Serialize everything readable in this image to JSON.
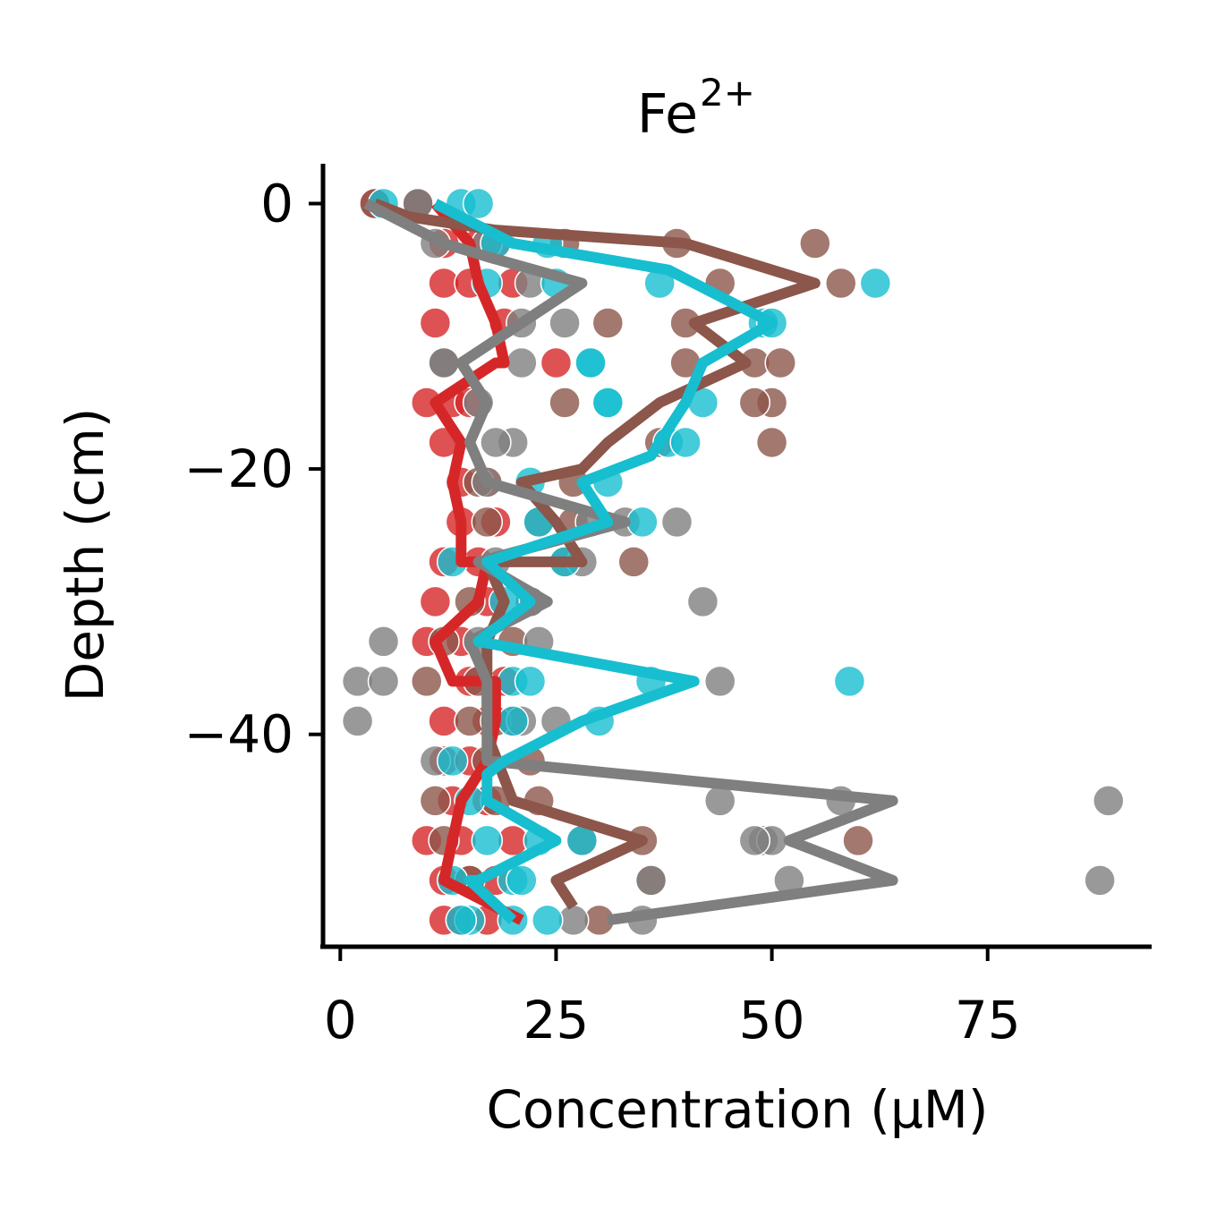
{
  "chart_data": {
    "type": "scatter",
    "title": "Fe",
    "title_superscript": "2+",
    "xlabel": "Concentration (μM)",
    "ylabel": "Depth (cm)",
    "xlim": [
      -2,
      94
    ],
    "ylim": [
      -56,
      3
    ],
    "xticks": [
      0,
      25,
      50,
      75
    ],
    "xtick_labels": [
      "0",
      "25",
      "50",
      "75"
    ],
    "yticks": [
      0,
      -20,
      -40
    ],
    "ytick_labels": [
      "0",
      "−20",
      "−40"
    ],
    "grid": false,
    "legend": "none",
    "series": [
      {
        "color": "#d62728",
        "line": {
          "x": [
            11,
            15,
            16,
            18,
            19,
            18,
            11,
            14,
            13,
            14,
            14,
            17,
            16,
            11,
            13,
            18,
            18,
            17,
            14,
            13,
            12,
            12,
            21
          ],
          "y": [
            0,
            -3,
            -6,
            -9,
            -12,
            -12,
            -15,
            -18,
            -21,
            -24,
            -27,
            -27,
            -30,
            -33,
            -36,
            -36,
            -39,
            -42,
            -45,
            -48,
            -51,
            -51,
            -54
          ]
        },
        "points": {
          "x": [
            4,
            9,
            12,
            16,
            18,
            12,
            15,
            20,
            11,
            19,
            12,
            25,
            10,
            13,
            15,
            12,
            14,
            17,
            14,
            18,
            12,
            16,
            17,
            11,
            14,
            10,
            15,
            19,
            12,
            17,
            20,
            12,
            15,
            13,
            17,
            10,
            14,
            20,
            12,
            15,
            18,
            12,
            14,
            17
          ],
          "y": [
            0,
            0,
            -3,
            -3,
            -3,
            -6,
            -6,
            -6,
            -9,
            -9,
            -12,
            -12,
            -15,
            -15,
            -15,
            -18,
            -21,
            -21,
            -24,
            -24,
            -27,
            -27,
            -30,
            -30,
            -33,
            -33,
            -36,
            -36,
            -39,
            -39,
            -39,
            -42,
            -42,
            -45,
            -45,
            -48,
            -48,
            -48,
            -51,
            -51,
            -51,
            -54,
            -54,
            -54
          ]
        }
      },
      {
        "color": "#8c564b",
        "line": {
          "x": [
            4,
            8,
            18,
            40,
            55,
            41,
            47,
            37,
            31,
            28,
            21,
            25,
            28,
            17,
            19,
            17,
            17,
            17,
            20,
            35,
            25,
            27
          ],
          "y": [
            0,
            -1,
            -2,
            -3,
            -6,
            -9,
            -12,
            -15,
            -18,
            -20,
            -21,
            -24,
            -27,
            -27,
            -30,
            -33,
            -36,
            -40,
            -45,
            -48,
            -51,
            -53
          ]
        },
        "points": {
          "x": [
            4,
            9,
            26,
            39,
            55,
            44,
            58,
            31,
            40,
            48,
            51,
            40,
            50,
            48,
            26,
            37,
            50,
            27,
            16,
            27,
            17,
            23,
            26,
            34,
            22,
            15,
            20,
            12,
            16,
            10,
            15,
            18,
            17,
            22,
            18,
            11,
            23,
            35,
            12,
            28,
            60,
            36,
            15,
            30
          ],
          "y": [
            0,
            0,
            -3,
            -3,
            -3,
            -6,
            -6,
            -9,
            -9,
            -12,
            -12,
            -12,
            -15,
            -15,
            -15,
            -18,
            -18,
            -21,
            -21,
            -24,
            -24,
            -24,
            -27,
            -27,
            -30,
            -30,
            -33,
            -33,
            -36,
            -36,
            -39,
            -39,
            -42,
            -42,
            -45,
            -45,
            -45,
            -48,
            -48,
            -48,
            -48,
            -51,
            -51,
            -54
          ]
        }
      },
      {
        "color": "#7f7f7f",
        "line": {
          "x": [
            3,
            12,
            17,
            28,
            14,
            17,
            15,
            17,
            17,
            33,
            16,
            24,
            15,
            17,
            17,
            64,
            52,
            64,
            31
          ],
          "y": [
            0,
            -3,
            -4,
            -6,
            -12,
            -15,
            -18,
            -21,
            -21,
            -24,
            -27,
            -30,
            -33,
            -36,
            -42,
            -45,
            -48,
            -51,
            -54
          ]
        },
        "points": {
          "x": [
            9,
            11,
            17,
            22,
            26,
            21,
            12,
            21,
            12,
            16,
            20,
            18,
            17,
            33,
            29,
            39,
            18,
            28,
            42,
            22,
            16,
            5,
            2,
            5,
            23,
            44,
            2,
            21,
            25,
            11,
            44,
            58,
            89,
            49,
            50,
            48,
            52,
            88,
            36,
            27,
            35
          ],
          "y": [
            0,
            -3,
            -3,
            -6,
            -9,
            -9,
            -12,
            -12,
            -12,
            -15,
            -18,
            -18,
            -21,
            -24,
            -24,
            -24,
            -27,
            -27,
            -30,
            -30,
            -33,
            -33,
            -36,
            -36,
            -33,
            -36,
            -39,
            -39,
            -39,
            -42,
            -45,
            -45,
            -45,
            -48,
            -48,
            -48,
            -51,
            -51,
            -51,
            -54,
            -54
          ]
        }
      },
      {
        "color": "#17becf",
        "line": {
          "x": [
            11,
            20,
            38,
            50,
            42,
            40,
            37,
            36,
            28,
            31,
            17,
            22,
            16,
            41,
            28,
            19,
            17,
            17,
            25,
            16,
            15,
            20
          ],
          "y": [
            0,
            -3,
            -5,
            -9,
            -12,
            -15,
            -18,
            -19,
            -21,
            -24,
            -27,
            -30,
            -33,
            -36,
            -39,
            -42,
            -43,
            -45,
            -48,
            -51,
            -51,
            -54
          ]
        },
        "points": {
          "x": [
            5,
            14,
            16,
            18,
            24,
            17,
            25,
            37,
            62,
            29,
            31,
            49,
            50,
            29,
            31,
            42,
            38,
            40,
            22,
            31,
            23,
            35,
            26,
            13,
            19,
            20,
            22,
            36,
            59,
            20,
            30,
            13,
            28,
            15,
            17,
            23,
            20,
            13,
            15,
            20,
            24,
            14,
            21
          ],
          "y": [
            0,
            0,
            0,
            -3,
            -3,
            -6,
            -6,
            -6,
            -6,
            -12,
            -15,
            -9,
            -9,
            -12,
            -15,
            -15,
            -18,
            -18,
            -21,
            -21,
            -24,
            -24,
            -27,
            -27,
            -30,
            -36,
            -36,
            -36,
            -36,
            -39,
            -39,
            -42,
            -48,
            -45,
            -48,
            -48,
            -51,
            -51,
            -54,
            -54,
            -54,
            -54,
            -51
          ]
        }
      }
    ]
  }
}
